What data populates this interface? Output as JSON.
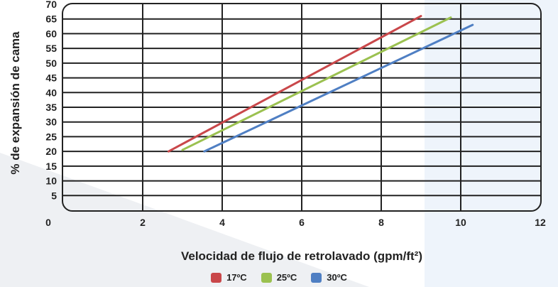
{
  "chart_data": {
    "type": "line",
    "xlabel": "Velocidad de flujo de retrolavado (gpm/ft²)",
    "ylabel": "% de expansión de cama",
    "xlim": [
      0,
      12
    ],
    "ylim": [
      0,
      70
    ],
    "x_ticks": [
      "0",
      "2",
      "4",
      "6",
      "8",
      "10",
      "12"
    ],
    "y_ticks": [
      "5",
      "10",
      "15",
      "20",
      "25",
      "30",
      "35",
      "40",
      "45",
      "50",
      "55",
      "60",
      "65",
      "70"
    ],
    "grid": true,
    "legend_position": "bottom",
    "series": [
      {
        "name": "17ºC",
        "color": "#c9474a",
        "x": [
          2.65,
          9.0
        ],
        "y": [
          20,
          66
        ]
      },
      {
        "name": "25ºC",
        "color": "#9bc150",
        "x": [
          3.0,
          9.75
        ],
        "y": [
          20.5,
          65.5
        ]
      },
      {
        "name": "30ºC",
        "color": "#4f7fc3",
        "x": [
          3.55,
          10.3
        ],
        "y": [
          20,
          63
        ]
      }
    ]
  }
}
